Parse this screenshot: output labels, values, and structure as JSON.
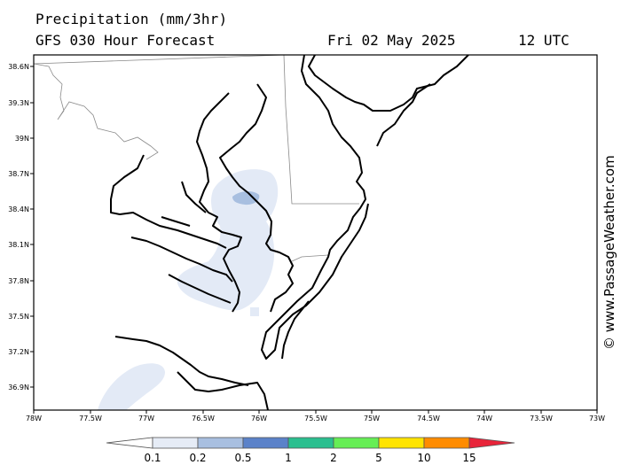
{
  "header": {
    "title": "Precipitation (mm/3hr)",
    "subtitle": "GFS 030 Hour Forecast",
    "date": "Fri 02 May 2025",
    "time": "12 UTC"
  },
  "watermark": "© www.PassageWeather.com",
  "axes": {
    "lat_labels": [
      "38.6N",
      "39.3N",
      "39N",
      "38.7N",
      "38.4N",
      "38.1N",
      "37.8N",
      "37.5N",
      "37.2N",
      "36.9N"
    ],
    "lon_labels": [
      "78W",
      "77.5W",
      "77W",
      "76.5W",
      "76W",
      "75.5W",
      "75W",
      "74.5W",
      "74W",
      "73.5W",
      "73W"
    ]
  },
  "legend": {
    "labels": [
      "0.1",
      "0.2",
      "0.5",
      "1",
      "2",
      "5",
      "10",
      "15"
    ],
    "colors": [
      "#ffffff",
      "#e6ecf6",
      "#a8bfe0",
      "#5b82c9",
      "#2bbf8f",
      "#66ee55",
      "#ffe400",
      "#ff8c00",
      "#e8243a"
    ]
  }
}
